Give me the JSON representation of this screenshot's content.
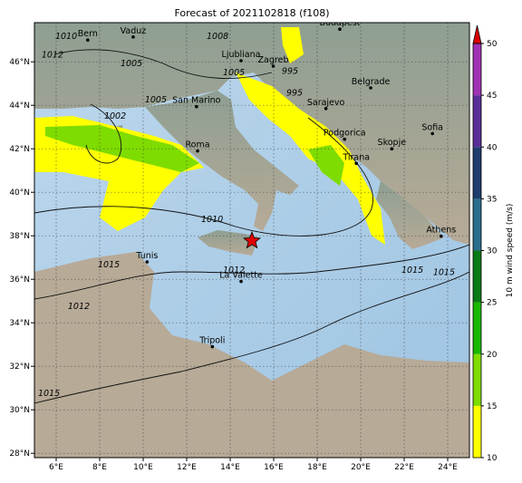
{
  "title": "Forecast of 2021102818 (f108)",
  "map": {
    "xlim": [
      5,
      25
    ],
    "ylim": [
      27.8,
      47.8
    ],
    "xticks": [
      {
        "value": 6,
        "label": "6°E"
      },
      {
        "value": 8,
        "label": "8°E"
      },
      {
        "value": 10,
        "label": "10°E"
      },
      {
        "value": 12,
        "label": "12°E"
      },
      {
        "value": 14,
        "label": "14°E"
      },
      {
        "value": 16,
        "label": "16°E"
      },
      {
        "value": 18,
        "label": "18°E"
      },
      {
        "value": 20,
        "label": "20°E"
      },
      {
        "value": 22,
        "label": "22°E"
      },
      {
        "value": 24,
        "label": "24°E"
      }
    ],
    "yticks": [
      {
        "value": 28,
        "label": "28°N"
      },
      {
        "value": 30,
        "label": "30°N"
      },
      {
        "value": 32,
        "label": "32°N"
      },
      {
        "value": 34,
        "label": "34°N"
      },
      {
        "value": 36,
        "label": "36°N"
      },
      {
        "value": 38,
        "label": "38°N"
      },
      {
        "value": 40,
        "label": "40°N"
      },
      {
        "value": 42,
        "label": "42°N"
      },
      {
        "value": 44,
        "label": "44°N"
      },
      {
        "value": 46,
        "label": "46°N"
      }
    ],
    "grid": true,
    "cities": [
      {
        "name": "Bern",
        "lon": 7.45,
        "lat": 47.0
      },
      {
        "name": "Vaduz",
        "lon": 9.54,
        "lat": 47.14
      },
      {
        "name": "Budapest",
        "lon": 19.04,
        "lat": 47.5
      },
      {
        "name": "Ljubliana",
        "lon": 14.5,
        "lat": 46.05
      },
      {
        "name": "Zagreb",
        "lon": 15.98,
        "lat": 45.8
      },
      {
        "name": "San Marino",
        "lon": 12.45,
        "lat": 43.94
      },
      {
        "name": "Sarajevo",
        "lon": 18.4,
        "lat": 43.85
      },
      {
        "name": "Belgrade",
        "lon": 20.46,
        "lat": 44.8
      },
      {
        "name": "Roma",
        "lon": 12.5,
        "lat": 41.9
      },
      {
        "name": "Podgorica",
        "lon": 19.26,
        "lat": 42.44
      },
      {
        "name": "Skopje",
        "lon": 21.43,
        "lat": 42.0
      },
      {
        "name": "Sofia",
        "lon": 23.3,
        "lat": 42.7
      },
      {
        "name": "Tirana",
        "lon": 19.8,
        "lat": 41.33
      },
      {
        "name": "Tunis",
        "lon": 10.18,
        "lat": 36.8
      },
      {
        "name": "La Valette",
        "lon": 14.5,
        "lat": 35.9
      },
      {
        "name": "Tripoli",
        "lon": 13.18,
        "lat": 32.9
      },
      {
        "name": "Athens",
        "lon": 23.7,
        "lat": 37.98
      }
    ],
    "contour_labels": [
      {
        "text": "1010",
        "lon": 6.46,
        "lat": 47.17
      },
      {
        "text": "1008",
        "lon": 13.42,
        "lat": 47.17
      },
      {
        "text": "1005",
        "lon": 9.46,
        "lat": 45.92
      },
      {
        "text": "1012",
        "lon": 5.83,
        "lat": 46.33
      },
      {
        "text": "1005",
        "lon": 14.17,
        "lat": 45.5
      },
      {
        "text": "995",
        "lon": 16.75,
        "lat": 45.58
      },
      {
        "text": "995",
        "lon": 16.96,
        "lat": 44.58
      },
      {
        "text": "1005",
        "lon": 10.58,
        "lat": 44.25
      },
      {
        "text": "1002",
        "lon": 8.71,
        "lat": 43.5
      },
      {
        "text": "1010",
        "lon": 13.17,
        "lat": 38.75
      },
      {
        "text": "1012",
        "lon": 14.17,
        "lat": 36.42
      },
      {
        "text": "1015",
        "lon": 8.42,
        "lat": 36.67
      },
      {
        "text": "1012",
        "lon": 7.04,
        "lat": 34.75
      },
      {
        "text": "1015",
        "lon": 5.67,
        "lat": 30.75
      },
      {
        "text": "1015",
        "lon": 22.38,
        "lat": 36.42
      },
      {
        "text": "1015",
        "lon": 23.83,
        "lat": 36.33
      }
    ]
  },
  "colorbar": {
    "label": "10 m wind speed (m/s)",
    "lim": [
      10,
      50
    ],
    "ticks": [
      10,
      15,
      20,
      25,
      30,
      35,
      40,
      45,
      50
    ],
    "colors": [
      "#ffff00",
      "#7fdc00",
      "#1bb800",
      "#0a7a14",
      "#2a6e8e",
      "#1f3d6e",
      "#5a2e98",
      "#a032b4"
    ],
    "extend_color": "#dd0000"
  }
}
